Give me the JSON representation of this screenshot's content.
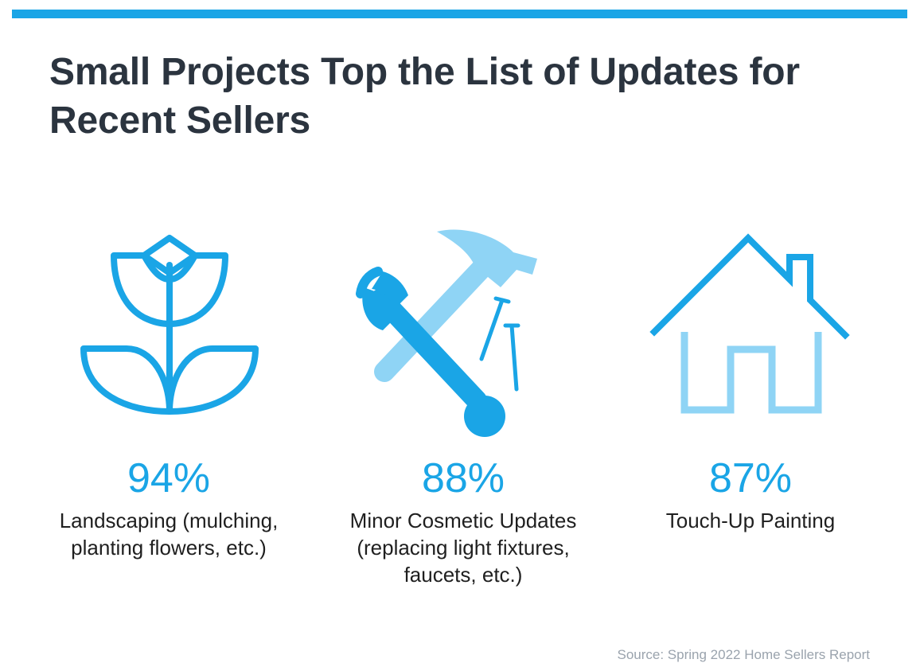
{
  "header": {
    "title": "Small Projects Top the List of Updates for Recent Sellers"
  },
  "stats": [
    {
      "icon": "tulip-icon",
      "percent": "94%",
      "label": "Landscaping (mulching, planting flowers, etc.)"
    },
    {
      "icon": "hammer-wrench-icon",
      "percent": "88%",
      "label": "Minor Cosmetic Updates (replacing light fixtures, faucets, etc.)"
    },
    {
      "icon": "house-icon",
      "percent": "87%",
      "label": "Touch-Up Painting"
    }
  ],
  "footer": {
    "source": "Source: Spring 2022 Home Sellers Report"
  },
  "colors": {
    "accent": "#1aa5e6",
    "accent_light": "#8fd4f5",
    "title": "#2b343f",
    "source": "#9aa3ad"
  },
  "chart_data": {
    "type": "table",
    "title": "Small Projects Top the List of Updates for Recent Sellers",
    "categories": [
      "Landscaping (mulching, planting flowers, etc.)",
      "Minor Cosmetic Updates (replacing light fixtures, faucets, etc.)",
      "Touch-Up Painting"
    ],
    "values": [
      94,
      88,
      87
    ],
    "unit": "%",
    "source": "Source: Spring 2022 Home Sellers Report"
  }
}
